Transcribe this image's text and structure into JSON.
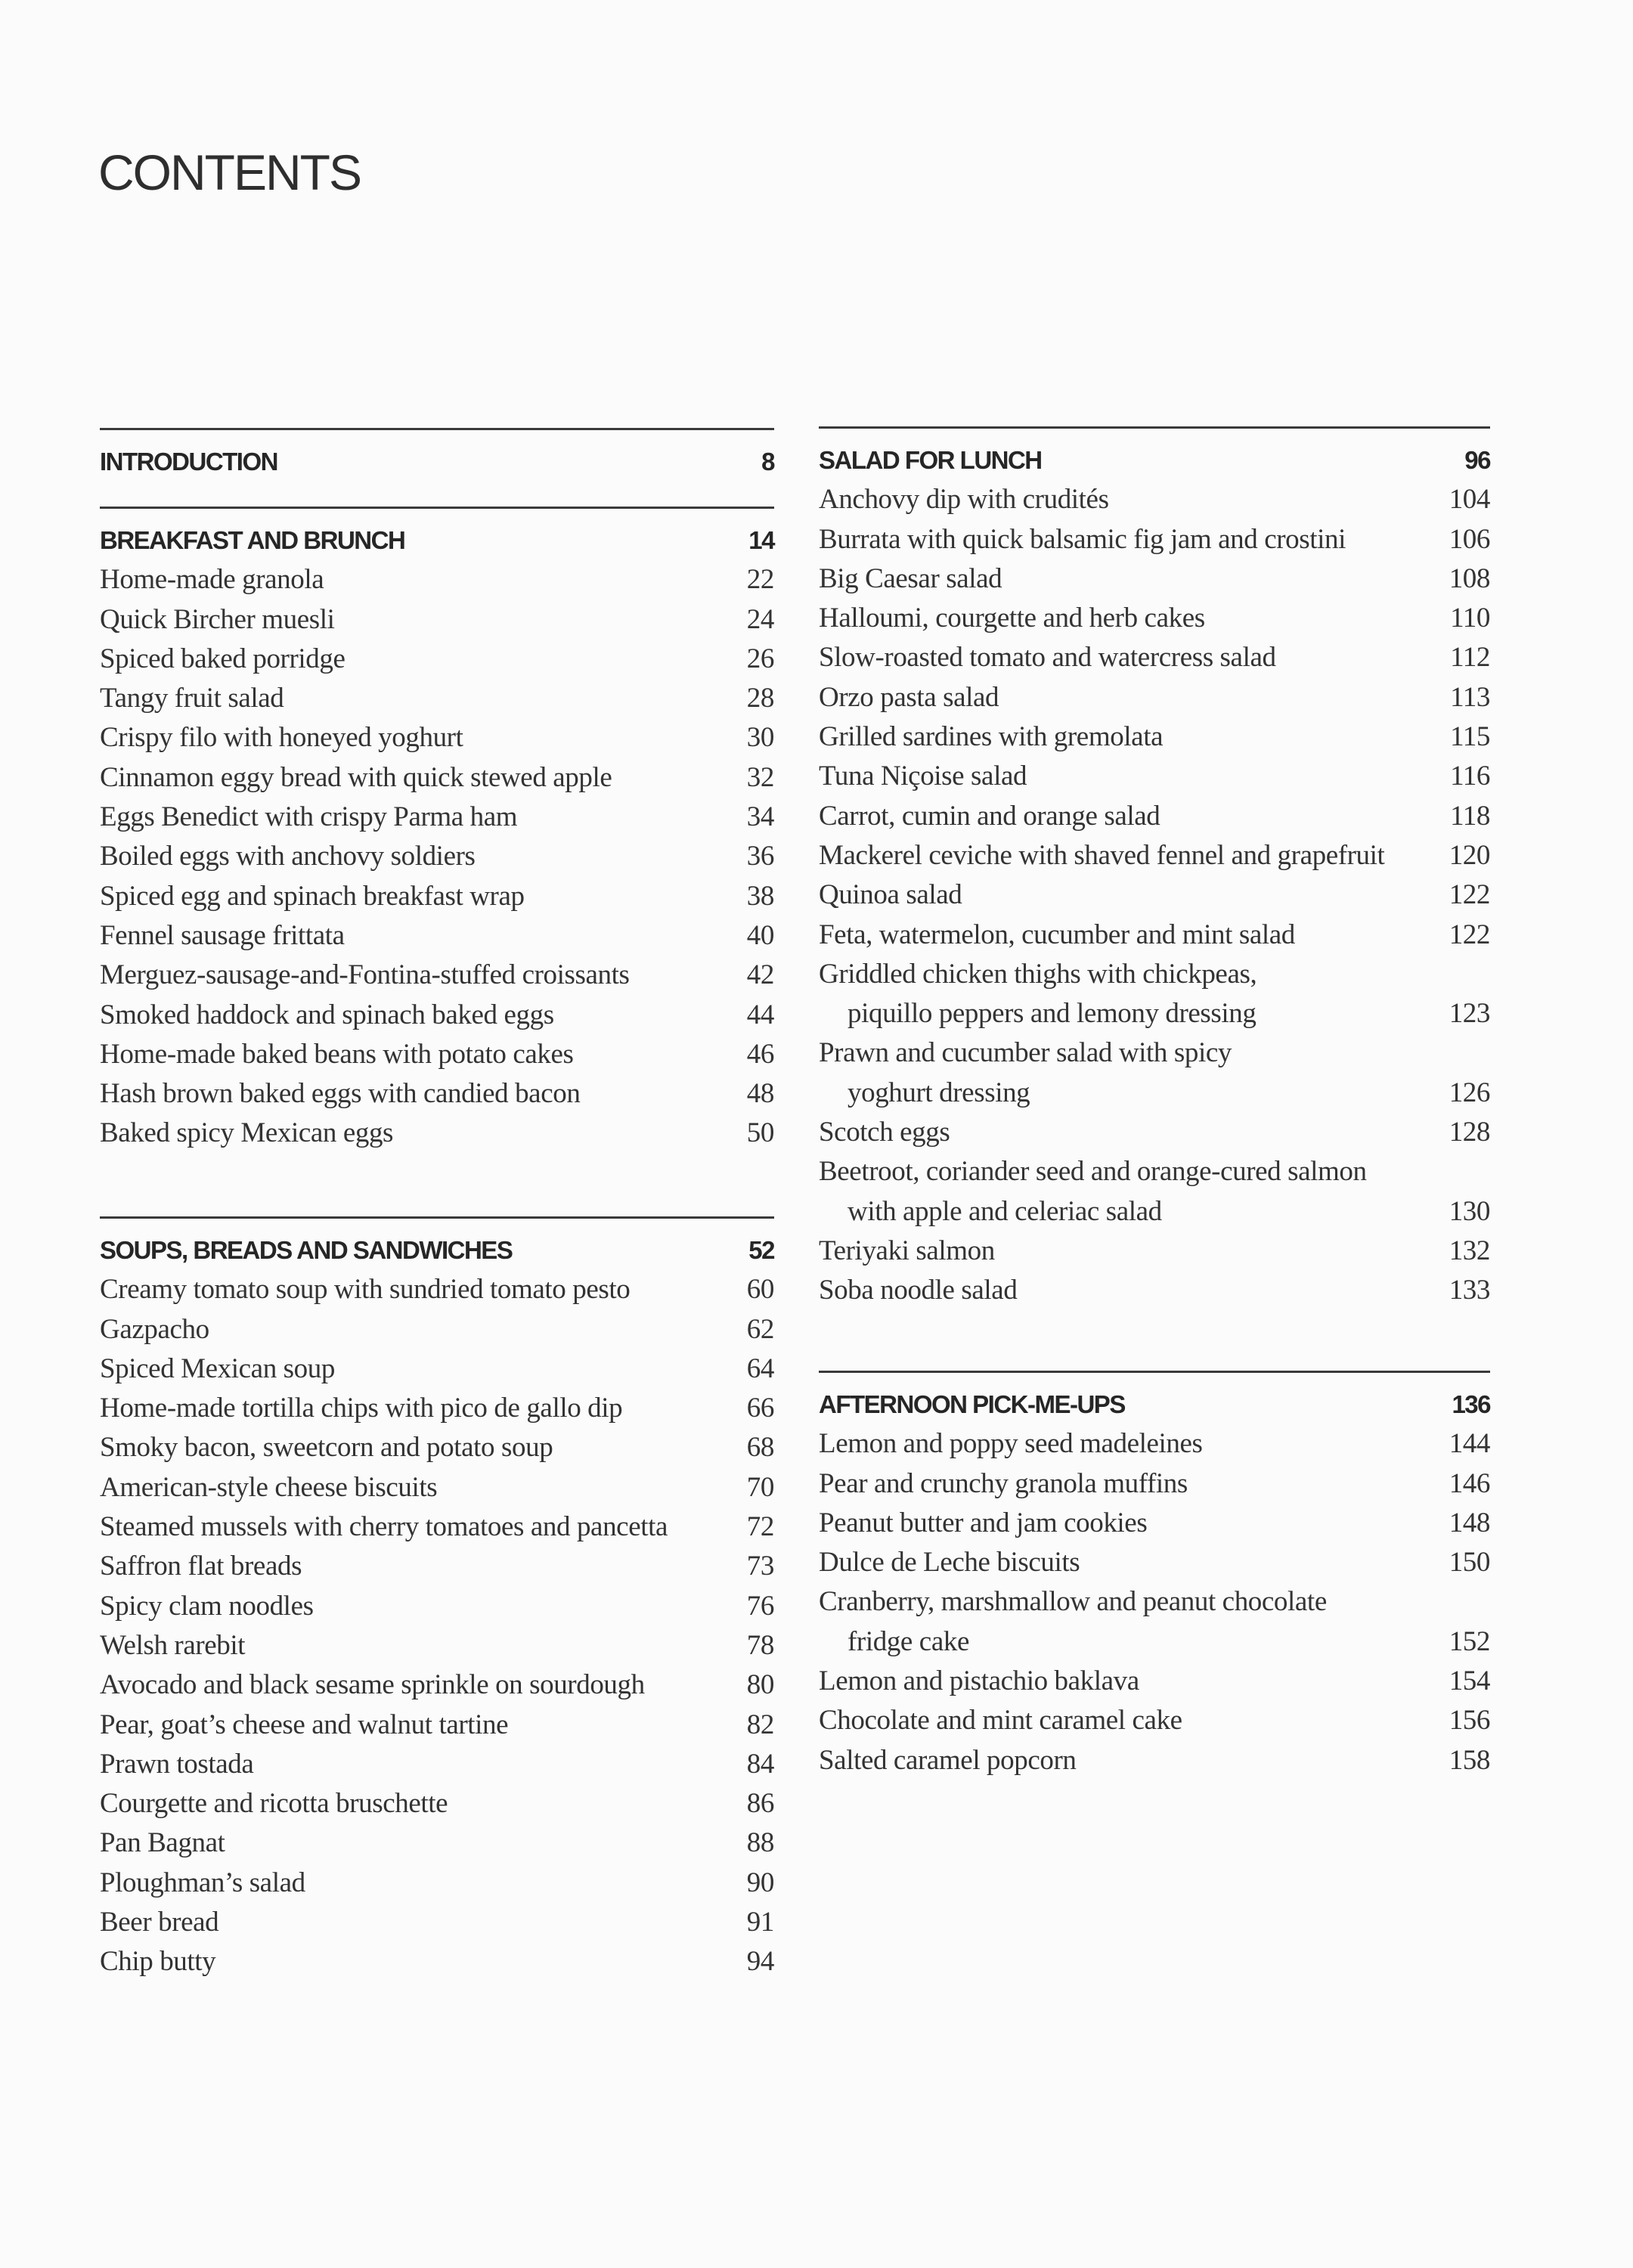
{
  "title": "CONTENTS",
  "sections": [
    {
      "id": "introduction",
      "heading": "INTRODUCTION",
      "page": "8",
      "items": []
    },
    {
      "id": "breakfast",
      "heading": "BREAKFAST AND BRUNCH",
      "page": "14",
      "items": [
        {
          "title": "Home-made granola",
          "page": "22"
        },
        {
          "title": "Quick Bircher muesli",
          "page": "24"
        },
        {
          "title": "Spiced baked porridge",
          "page": "26"
        },
        {
          "title": "Tangy fruit salad",
          "page": "28"
        },
        {
          "title": "Crispy filo with honeyed yoghurt",
          "page": "30"
        },
        {
          "title": "Cinnamon eggy bread with quick stewed apple",
          "page": "32"
        },
        {
          "title": "Eggs Benedict with crispy Parma ham",
          "page": "34"
        },
        {
          "title": "Boiled eggs with anchovy soldiers",
          "page": "36"
        },
        {
          "title": "Spiced egg and spinach breakfast wrap",
          "page": "38"
        },
        {
          "title": "Fennel sausage frittata",
          "page": "40"
        },
        {
          "title": "Merguez-sausage-and-Fontina-stuffed croissants",
          "page": "42"
        },
        {
          "title": "Smoked haddock and spinach baked eggs",
          "page": "44"
        },
        {
          "title": "Home-made baked beans with potato cakes",
          "page": "46"
        },
        {
          "title": "Hash brown baked eggs with candied bacon",
          "page": "48"
        },
        {
          "title": "Baked spicy Mexican eggs",
          "page": "50"
        }
      ]
    },
    {
      "id": "soups",
      "heading": "SOUPS, BREADS AND SANDWICHES",
      "page": "52",
      "items": [
        {
          "title": "Creamy tomato soup with sundried tomato pesto",
          "page": "60"
        },
        {
          "title": "Gazpacho",
          "page": "62"
        },
        {
          "title": "Spiced Mexican soup",
          "page": "64"
        },
        {
          "title": "Home-made tortilla chips with pico de gallo dip",
          "page": "66"
        },
        {
          "title": "Smoky bacon, sweetcorn and potato soup",
          "page": "68"
        },
        {
          "title": "American-style cheese biscuits",
          "page": "70"
        },
        {
          "title": "Steamed mussels with cherry tomatoes and pancetta",
          "page": "72"
        },
        {
          "title": "Saffron flat breads",
          "page": "73"
        },
        {
          "title": "Spicy clam noodles",
          "page": "76"
        },
        {
          "title": "Welsh rarebit",
          "page": "78"
        },
        {
          "title": "Avocado and black sesame sprinkle on sourdough",
          "page": "80"
        },
        {
          "title": "Pear, goat’s cheese and walnut tartine",
          "page": "82"
        },
        {
          "title": "Prawn tostada",
          "page": "84"
        },
        {
          "title": "Courgette and ricotta bruschette",
          "page": "86"
        },
        {
          "title": "Pan Bagnat",
          "page": "88"
        },
        {
          "title": "Ploughman’s salad",
          "page": "90"
        },
        {
          "title": "Beer bread",
          "page": "91"
        },
        {
          "title": "Chip butty",
          "page": "94"
        }
      ]
    },
    {
      "id": "salad",
      "heading": "SALAD FOR LUNCH",
      "page": "96",
      "items": [
        {
          "title": "Anchovy dip with crudités",
          "page": "104"
        },
        {
          "title": "Burrata with quick balsamic fig jam and crostini",
          "page": "106"
        },
        {
          "title": "Big Caesar salad",
          "page": "108"
        },
        {
          "title": "Halloumi, courgette and herb cakes",
          "page": "110"
        },
        {
          "title": "Slow-roasted tomato and watercress salad",
          "page": "112"
        },
        {
          "title": "Orzo pasta salad",
          "page": "113"
        },
        {
          "title": "Grilled sardines with gremolata",
          "page": "115"
        },
        {
          "title": "Tuna Niçoise salad",
          "page": "116"
        },
        {
          "title": "Carrot, cumin and orange salad",
          "page": "118"
        },
        {
          "title": "Mackerel ceviche with shaved fennel and grapefruit",
          "page": "120"
        },
        {
          "title": "Quinoa salad",
          "page": "122"
        },
        {
          "title": "Feta, watermelon, cucumber and mint salad",
          "page": "122"
        },
        {
          "title": "Griddled chicken thighs with chickpeas,",
          "cont": "piquillo peppers and lemony dressing",
          "page": "123"
        },
        {
          "title": "Prawn and cucumber salad with spicy",
          "cont": "yoghurt dressing",
          "page": "126"
        },
        {
          "title": "Scotch eggs",
          "page": "128"
        },
        {
          "title": "Beetroot, coriander seed and orange-cured salmon",
          "cont": "with apple and celeriac salad",
          "page": "130"
        },
        {
          "title": "Teriyaki salmon",
          "page": "132"
        },
        {
          "title": "Soba noodle salad",
          "page": "133"
        }
      ]
    },
    {
      "id": "afternoon",
      "heading": "AFTERNOON PICK-ME-UPS",
      "page": "136",
      "items": [
        {
          "title": "Lemon and poppy seed madeleines",
          "page": "144"
        },
        {
          "title": "Pear and crunchy granola muffins",
          "page": "146"
        },
        {
          "title": "Peanut butter and jam cookies",
          "page": "148"
        },
        {
          "title": "Dulce de Leche biscuits",
          "page": "150"
        },
        {
          "title": "Cranberry, marshmallow and peanut chocolate",
          "cont": "fridge cake",
          "page": "152"
        },
        {
          "title": "Lemon and pistachio baklava",
          "page": "154"
        },
        {
          "title": "Chocolate and mint caramel cake",
          "page": "156"
        },
        {
          "title": "Salted caramel popcorn",
          "page": "158"
        }
      ]
    }
  ]
}
